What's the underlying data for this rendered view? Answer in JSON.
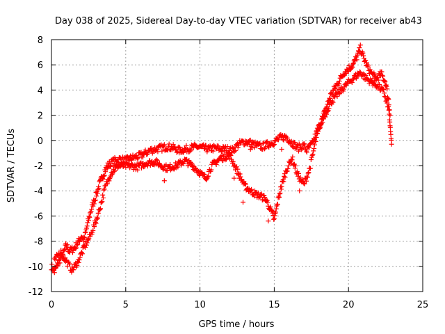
{
  "chart_data": {
    "type": "scatter",
    "title": "Day 038 of 2025, Sidereal Day-to-day VTEC variation (SDTVAR) for receiver ab43",
    "xlabel": "GPS time / hours",
    "ylabel": "SDTVAR / TECUs",
    "xlim": [
      0,
      25
    ],
    "ylim": [
      -12,
      8
    ],
    "x_ticks": [
      0,
      5,
      10,
      15,
      20,
      25
    ],
    "y_ticks": [
      -12,
      -10,
      -8,
      -6,
      -4,
      -2,
      0,
      2,
      4,
      6,
      8
    ],
    "grid": true,
    "marker": "+",
    "series": [
      {
        "name": "SDTVAR",
        "color": "#ff0000",
        "trace": [
          [
            0.0,
            -10.0
          ],
          [
            0.2,
            -10.4
          ],
          [
            0.4,
            -9.9
          ],
          [
            0.6,
            -9.4
          ],
          [
            0.8,
            -9.0
          ],
          [
            1.0,
            -8.3
          ],
          [
            1.2,
            -8.8
          ],
          [
            1.5,
            -8.6
          ],
          [
            1.8,
            -8.1
          ],
          [
            2.0,
            -7.6
          ],
          [
            2.2,
            -7.9
          ],
          [
            2.4,
            -6.8
          ],
          [
            2.6,
            -5.8
          ],
          [
            2.8,
            -5.0
          ],
          [
            3.0,
            -4.4
          ],
          [
            3.2,
            -3.6
          ],
          [
            3.4,
            -3.0
          ],
          [
            3.6,
            -2.4
          ],
          [
            3.8,
            -2.0
          ],
          [
            4.0,
            -1.8
          ],
          [
            4.3,
            -1.6
          ],
          [
            4.6,
            -1.5
          ],
          [
            5.0,
            -1.6
          ],
          [
            5.4,
            -1.4
          ],
          [
            5.8,
            -1.3
          ],
          [
            6.2,
            -1.1
          ],
          [
            6.6,
            -0.8
          ],
          [
            7.0,
            -0.7
          ],
          [
            7.4,
            -0.6
          ],
          [
            7.8,
            -0.5
          ],
          [
            8.2,
            -0.6
          ],
          [
            8.6,
            -0.8
          ],
          [
            9.0,
            -0.7
          ],
          [
            9.4,
            -0.6
          ],
          [
            9.8,
            -0.5
          ],
          [
            10.2,
            -0.6
          ],
          [
            10.6,
            -0.7
          ],
          [
            11.0,
            -0.6
          ],
          [
            11.4,
            -0.7
          ],
          [
            11.8,
            -0.7
          ],
          [
            12.2,
            -0.8
          ],
          [
            12.6,
            -0.3
          ],
          [
            13.0,
            -0.1
          ],
          [
            13.4,
            -0.2
          ],
          [
            13.8,
            -0.4
          ],
          [
            14.2,
            -0.5
          ],
          [
            14.6,
            -0.3
          ],
          [
            15.0,
            -0.1
          ],
          [
            15.4,
            0.2
          ],
          [
            15.8,
            0.3
          ],
          [
            16.2,
            -0.2
          ],
          [
            16.6,
            -0.6
          ],
          [
            17.0,
            -0.4
          ],
          [
            17.2,
            -0.8
          ],
          [
            17.6,
            -0.2
          ],
          [
            17.9,
            0.8
          ],
          [
            18.2,
            1.6
          ],
          [
            18.5,
            2.6
          ],
          [
            18.8,
            3.6
          ],
          [
            19.1,
            4.2
          ],
          [
            19.4,
            4.8
          ],
          [
            19.7,
            5.4
          ],
          [
            20.0,
            5.7
          ],
          [
            20.3,
            6.0
          ],
          [
            20.6,
            6.7
          ],
          [
            20.8,
            7.3
          ],
          [
            21.0,
            6.6
          ],
          [
            21.3,
            5.8
          ],
          [
            21.6,
            5.2
          ],
          [
            21.9,
            4.9
          ],
          [
            22.2,
            5.3
          ],
          [
            22.5,
            4.6
          ],
          [
            22.7,
            3.2
          ],
          [
            22.8,
            1.2
          ],
          [
            22.9,
            -0.3
          ]
        ],
        "secondary_trace": [
          [
            0.2,
            -9.6
          ],
          [
            0.6,
            -8.8
          ],
          [
            1.0,
            -9.6
          ],
          [
            1.4,
            -10.3
          ],
          [
            1.8,
            -9.6
          ],
          [
            2.2,
            -8.5
          ],
          [
            2.6,
            -7.6
          ],
          [
            3.0,
            -6.4
          ],
          [
            3.3,
            -5.2
          ],
          [
            3.6,
            -3.8
          ],
          [
            4.0,
            -2.6
          ],
          [
            4.5,
            -2.0
          ],
          [
            5.2,
            -2.0
          ],
          [
            5.8,
            -2.1
          ],
          [
            6.4,
            -1.8
          ],
          [
            7.0,
            -1.7
          ],
          [
            7.4,
            -2.0
          ],
          [
            7.8,
            -2.2
          ],
          [
            8.4,
            -2.0
          ],
          [
            9.0,
            -1.6
          ],
          [
            9.6,
            -2.1
          ],
          [
            10.1,
            -2.7
          ],
          [
            10.4,
            -3.0
          ],
          [
            10.8,
            -2.0
          ],
          [
            11.4,
            -1.4
          ],
          [
            12.0,
            -1.2
          ],
          [
            12.5,
            -2.4
          ],
          [
            13.0,
            -3.6
          ],
          [
            13.5,
            -4.1
          ],
          [
            14.0,
            -4.4
          ],
          [
            14.4,
            -4.6
          ],
          [
            14.8,
            -5.6
          ],
          [
            15.0,
            -6.3
          ],
          [
            15.2,
            -5.1
          ],
          [
            15.4,
            -4.0
          ],
          [
            15.6,
            -3.2
          ],
          [
            15.8,
            -2.4
          ],
          [
            16.2,
            -1.4
          ],
          [
            16.6,
            -2.8
          ],
          [
            17.0,
            -3.5
          ],
          [
            17.4,
            -2.2
          ],
          [
            17.8,
            0.0
          ],
          [
            18.1,
            1.2
          ],
          [
            18.4,
            2.0
          ],
          [
            18.8,
            3.0
          ],
          [
            19.2,
            3.6
          ],
          [
            19.6,
            4.1
          ],
          [
            20.0,
            4.6
          ],
          [
            20.4,
            5.0
          ],
          [
            20.8,
            5.4
          ],
          [
            21.2,
            4.9
          ],
          [
            21.6,
            4.6
          ],
          [
            22.0,
            4.3
          ],
          [
            22.4,
            3.8
          ],
          [
            22.8,
            2.0
          ]
        ],
        "isolated_points": [
          [
            7.6,
            -3.2
          ],
          [
            9.2,
            -2.0
          ],
          [
            12.3,
            -3.0
          ],
          [
            12.9,
            -4.9
          ],
          [
            13.5,
            -0.6
          ],
          [
            13.4,
            -0.7
          ],
          [
            14.6,
            -6.4
          ],
          [
            16.7,
            -4.0
          ],
          [
            15.5,
            -0.7
          ]
        ]
      }
    ]
  }
}
